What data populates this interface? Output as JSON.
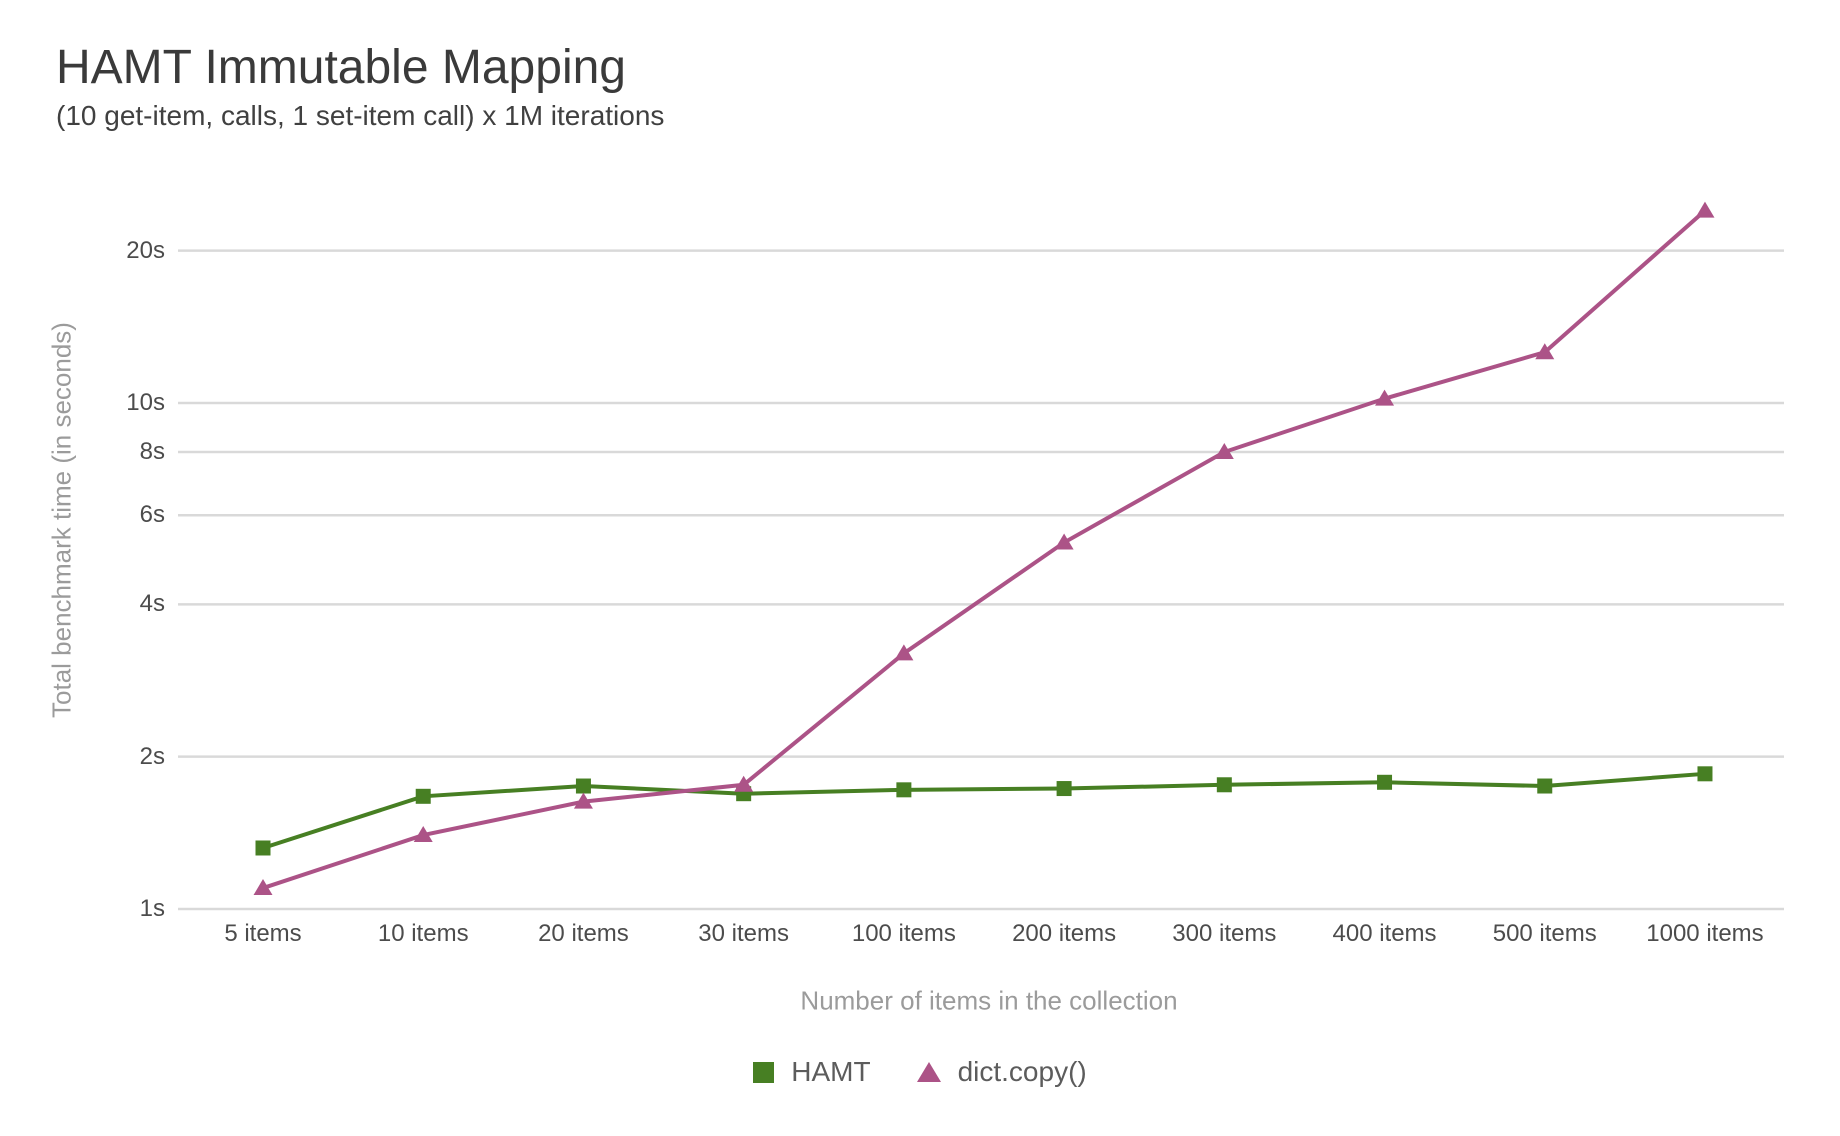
{
  "chart_data": {
    "type": "line",
    "title": "HAMT Immutable Mapping",
    "subtitle": "(10 get-item, calls, 1 set-item call) x 1M iterations",
    "xlabel": "Number of items in the collection",
    "ylabel": "Total benchmark time (in seconds)",
    "categories": [
      "5 items",
      "10 items",
      "20 items",
      "30 items",
      "100 items",
      "200 items",
      "300 items",
      "400 items",
      "500 items",
      "1000 items"
    ],
    "y_scale": "log",
    "ylim": [
      1,
      29
    ],
    "grid": true,
    "legend_position": "bottom",
    "background_color": "#ffffff",
    "gridline_color": "#d9d9d9",
    "y_ticks": [
      {
        "label": "1s",
        "value": 1
      },
      {
        "label": "2s",
        "value": 2
      },
      {
        "label": "4s",
        "value": 4
      },
      {
        "label": "6s",
        "value": 6
      },
      {
        "label": "8s",
        "value": 8
      },
      {
        "label": "10s",
        "value": 10
      },
      {
        "label": "20s",
        "value": 20
      }
    ],
    "series": [
      {
        "name": "HAMT",
        "color": "#477f23",
        "marker": "square",
        "values": [
          1.32,
          1.67,
          1.75,
          1.69,
          1.72,
          1.73,
          1.76,
          1.78,
          1.75,
          1.85
        ]
      },
      {
        "name": "dict.copy()",
        "color": "#ac5387",
        "marker": "triangle",
        "values": [
          1.1,
          1.4,
          1.63,
          1.76,
          3.2,
          5.3,
          8.0,
          10.2,
          12.6,
          24.0
        ]
      }
    ]
  }
}
